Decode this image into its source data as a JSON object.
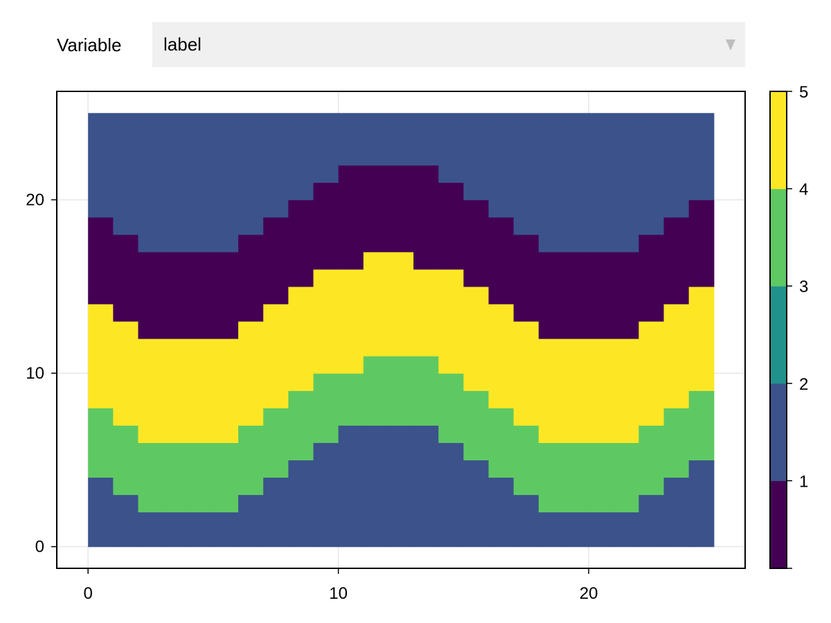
{
  "control": {
    "label": "Variable",
    "selected": "label"
  },
  "colors": {
    "1": "#440154",
    "2": "#3b528b",
    "3": "#21918c",
    "4": "#5ec962",
    "5": "#fde725"
  },
  "chart_data": {
    "type": "heatmap",
    "title": "",
    "xlabel": "",
    "ylabel": "",
    "xlim": [
      -1.25,
      26.25
    ],
    "ylim": [
      -1.25,
      26.25
    ],
    "xticks": [
      "0",
      "10",
      "20"
    ],
    "yticks": [
      "0",
      "10",
      "20"
    ],
    "grid": true,
    "x_range": [
      0,
      25
    ],
    "y_range": [
      0,
      25
    ],
    "band_values": [
      2,
      4,
      5,
      1,
      2
    ],
    "band_boundaries": [
      [
        4,
        3,
        2,
        2,
        2,
        2,
        3,
        4,
        5,
        6,
        7,
        7,
        7,
        7,
        6,
        5,
        4,
        3,
        2,
        2,
        2,
        2,
        3,
        4,
        5
      ],
      [
        8,
        7,
        6,
        6,
        6,
        6,
        7,
        8,
        9,
        10,
        10,
        11,
        11,
        11,
        10,
        9,
        8,
        7,
        6,
        6,
        6,
        6,
        7,
        8,
        9
      ],
      [
        14,
        13,
        12,
        12,
        12,
        12,
        13,
        14,
        15,
        16,
        16,
        17,
        17,
        16,
        16,
        15,
        14,
        13,
        12,
        12,
        12,
        12,
        13,
        14,
        15
      ],
      [
        19,
        18,
        17,
        17,
        17,
        17,
        18,
        19,
        20,
        21,
        22,
        22,
        22,
        22,
        21,
        20,
        19,
        18,
        17,
        17,
        17,
        17,
        18,
        19,
        20
      ]
    ],
    "colorbar": {
      "ticks": [
        "1",
        "2",
        "3",
        "4",
        "5"
      ],
      "levels": [
        0.1,
        1,
        2,
        3,
        4,
        5
      ]
    }
  }
}
